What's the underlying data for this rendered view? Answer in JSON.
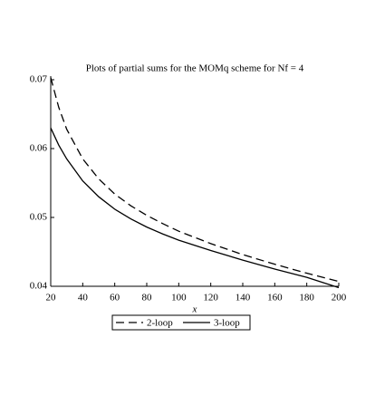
{
  "chart_data": {
    "type": "line",
    "title": "Plots of partial sums for the MOMq scheme for Nf = 4",
    "x_label": "x",
    "x": [
      20,
      25,
      30,
      40,
      50,
      60,
      70,
      80,
      90,
      100,
      120,
      140,
      160,
      180,
      200
    ],
    "series": [
      {
        "name": "2-loop",
        "color": "#000000",
        "dash": true,
        "values": [
          0.0703,
          0.066,
          0.0628,
          0.0585,
          0.0556,
          0.0534,
          0.0517,
          0.0503,
          0.0491,
          0.048,
          0.0462,
          0.0446,
          0.0432,
          0.0419,
          0.0407
        ]
      },
      {
        "name": "3-loop",
        "color": "#000000",
        "dash": false,
        "values": [
          0.063,
          0.0605,
          0.0585,
          0.0553,
          0.053,
          0.0512,
          0.0498,
          0.0486,
          0.0476,
          0.0467,
          0.0452,
          0.0438,
          0.0425,
          0.0413,
          0.0398
        ]
      }
    ],
    "xlim": [
      20,
      200
    ],
    "xticks": [
      20,
      40,
      60,
      80,
      100,
      120,
      140,
      160,
      180,
      200
    ],
    "ylim": [
      0.04,
      0.07
    ],
    "yticks": [
      0.04,
      0.05,
      0.06,
      0.07
    ],
    "legend": "bottom"
  }
}
